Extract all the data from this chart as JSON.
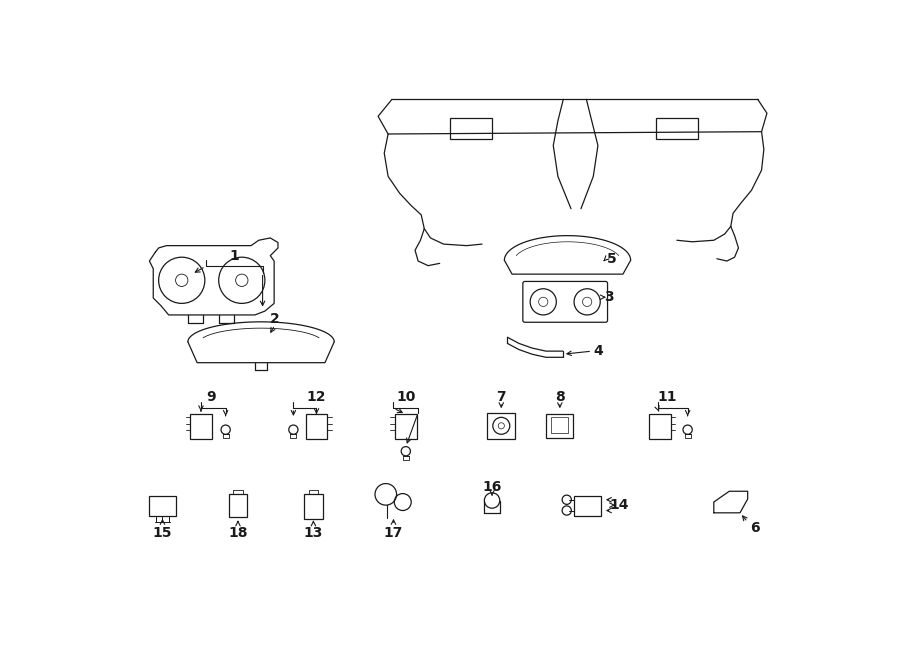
{
  "bg_color": "#ffffff",
  "line_color": "#1a1a1a",
  "fig_width": 9.0,
  "fig_height": 6.61,
  "dpi": 100,
  "label_fs": 10,
  "lw": 0.9
}
